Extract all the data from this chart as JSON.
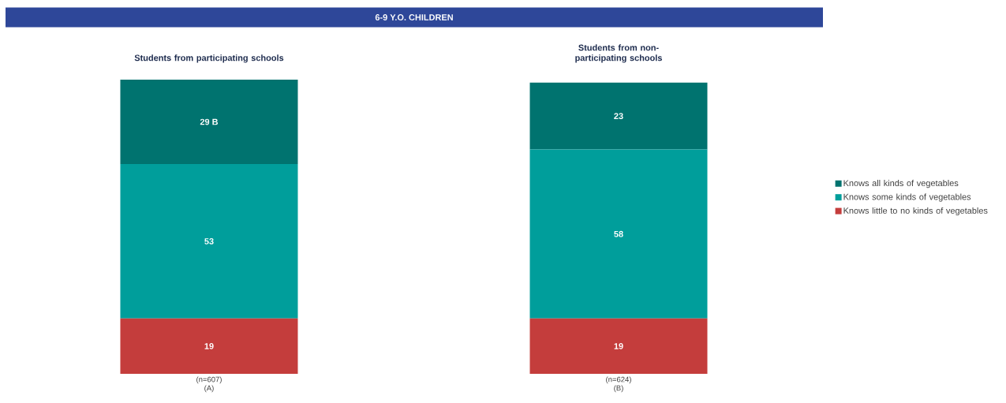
{
  "chart_data": {
    "type": "bar",
    "stacked": true,
    "title": "6-9 Y.O. CHILDREN",
    "categories": [
      "(n=607) (A)",
      "(n=624) (B)"
    ],
    "annotations": [
      "Students from participating schools",
      "Students from non-participating schools"
    ],
    "series": [
      {
        "name": "Knows little to no kinds of vegetables",
        "color": "#c43d3c",
        "values": [
          19,
          19
        ],
        "value_labels": [
          "19",
          "19"
        ]
      },
      {
        "name": "Knows some kinds of vegetables",
        "color": "#009e9b",
        "values": [
          53,
          58
        ],
        "value_labels": [
          "53",
          "58"
        ]
      },
      {
        "name": "Knows all kinds of vegetables",
        "color": "#00736f",
        "values": [
          29,
          23
        ],
        "value_labels": [
          "29 B",
          "23"
        ]
      }
    ],
    "ylim": [
      0,
      101
    ],
    "tick_labels": "x",
    "legend": "right"
  }
}
